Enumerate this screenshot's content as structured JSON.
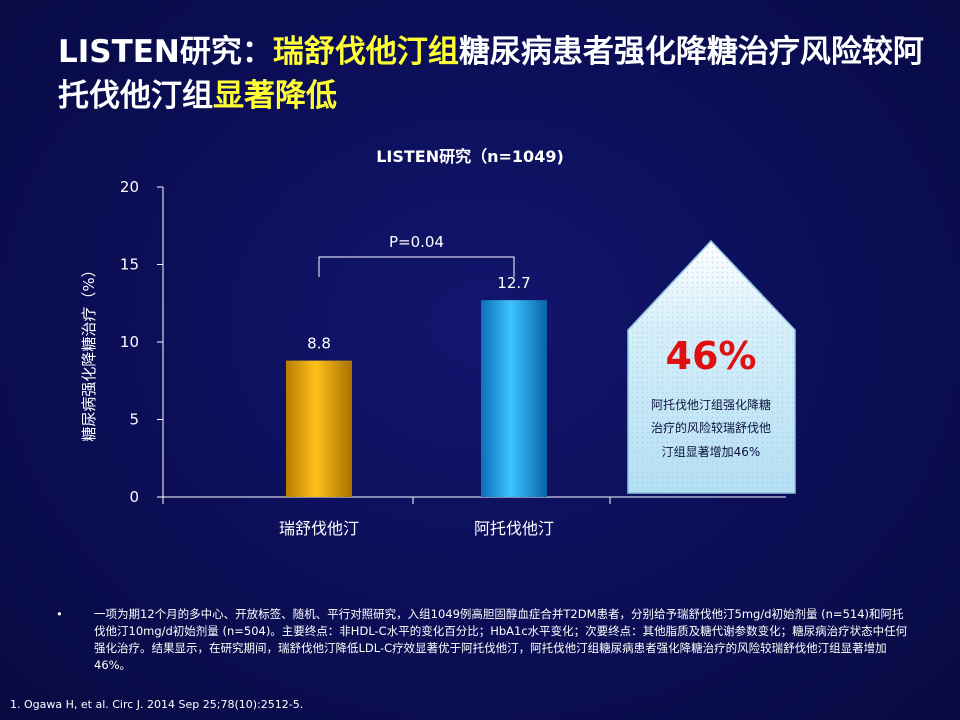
{
  "title": {
    "part1": "LISTEN研究：",
    "part2": "瑞舒伐他汀组",
    "part3": "糖尿病患者强化降糖治疗风险较阿托伐他汀组",
    "part4": "显著降低"
  },
  "chart_data": {
    "type": "bar",
    "title": "LISTEN研究（n=1049)",
    "categories": [
      "瑞舒伐他汀",
      "阿托伐他汀"
    ],
    "values": [
      8.8,
      12.7
    ],
    "value_labels": [
      "8.8",
      "12.7"
    ],
    "ylabel": "糖尿病强化降糖治疗（%）",
    "xlabel": "",
    "ylim": [
      0,
      20
    ],
    "yticks": [
      0,
      5,
      10,
      15,
      20
    ],
    "bar_colors": [
      "#e6a800",
      "#1ea7e8"
    ],
    "annotation": "P=0.04",
    "grid": false
  },
  "callout": {
    "percent": "46%",
    "lines": [
      "阿托伐他汀组强化降糖",
      "治疗的风险较瑞舒伐他",
      "汀组显著增加46%"
    ],
    "percent_color": "#e01010"
  },
  "footnote": {
    "bullet": "•",
    "text": "一项为期12个月的多中心、开放标签、随机、平行对照研究，入组1049例高胆固醇血症合并T2DM患者，分别给予瑞舒伐他汀5mg/d初始剂量 (n=514)和阿托伐他汀10mg/d初始剂量 (n=504)。主要终点：非HDL-C水平的变化百分比；HbA1c水平变化；次要终点：其他脂质及糖代谢参数变化；糖尿病治疗状态中任何强化治疗。结果显示，在研究期间，瑞舒伐他汀降低LDL-C疗效显著优于阿托伐他汀，阿托伐他汀组糖尿病患者强化降糖治疗的风险较瑞舒伐他汀组显著增加46%。"
  },
  "reference": "1. Ogawa H, et al. Circ J. 2014 Sep 25;78(10):2512-5."
}
